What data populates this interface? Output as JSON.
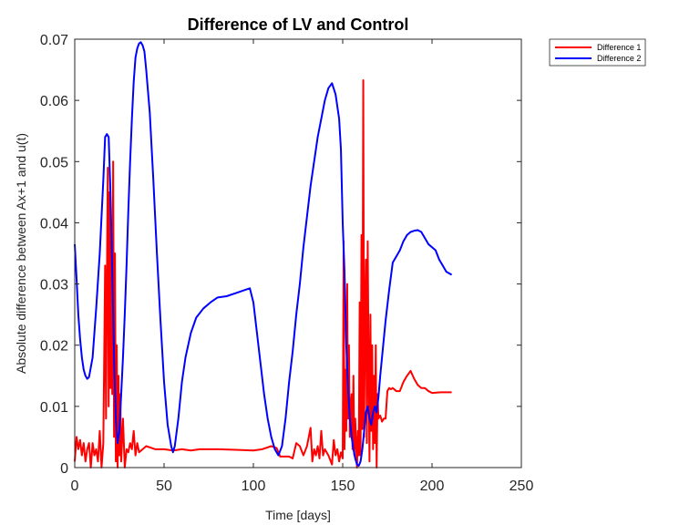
{
  "chart_data": {
    "type": "line",
    "title": "Difference of LV and Control",
    "xlabel": "Time [days]",
    "ylabel": "Absolute difference between Ax+1 and u(t)",
    "xlim": [
      0,
      250
    ],
    "ylim": [
      0,
      0.07
    ],
    "xticks": [
      0,
      50,
      100,
      150,
      200,
      250
    ],
    "xtick_labels": [
      "0",
      "50",
      "100",
      "150",
      "200",
      "250"
    ],
    "yticks": [
      0,
      0.01,
      0.02,
      0.03,
      0.04,
      0.05,
      0.06,
      0.07
    ],
    "ytick_labels": [
      "0",
      "0.01",
      "0.02",
      "0.03",
      "0.04",
      "0.05",
      "0.06",
      "0.07"
    ],
    "grid": false,
    "legend_position": "top-right (outside axes)",
    "series": [
      {
        "name": "Difference 1",
        "color": "#ff0000",
        "points": [
          [
            0,
            0.001
          ],
          [
            1,
            0.005
          ],
          [
            2,
            0.003
          ],
          [
            3,
            0.0045
          ],
          [
            4,
            0.002
          ],
          [
            5,
            0.004
          ],
          [
            6,
            0.001
          ],
          [
            7,
            0.003
          ],
          [
            8,
            0.004
          ],
          [
            9,
            0.0
          ],
          [
            10,
            0.004
          ],
          [
            11,
            0.002
          ],
          [
            12,
            0.003
          ],
          [
            13,
            0.001
          ],
          [
            14,
            0.006
          ],
          [
            15,
            0.0
          ],
          [
            16,
            0.004
          ],
          [
            17,
            0.033
          ],
          [
            17.5,
            0.008
          ],
          [
            18,
            0.03
          ],
          [
            18.5,
            0.049
          ],
          [
            19,
            0.01
          ],
          [
            19.5,
            0.045
          ],
          [
            20,
            0.013
          ],
          [
            20.5,
            0.04
          ],
          [
            21,
            0.012
          ],
          [
            21.5,
            0.05
          ],
          [
            22,
            0.005
          ],
          [
            22.5,
            0.035
          ],
          [
            23,
            0.001
          ],
          [
            23.5,
            0.02
          ],
          [
            24,
            0.0
          ],
          [
            24.5,
            0.015
          ],
          [
            25,
            0.002
          ],
          [
            25.5,
            0.012
          ],
          [
            26,
            0.001
          ],
          [
            27,
            0.008
          ],
          [
            28,
            0.0
          ],
          [
            29,
            0.003
          ],
          [
            30,
            0.0025
          ],
          [
            31,
            0.004
          ],
          [
            32,
            0.003
          ],
          [
            33,
            0.006
          ],
          [
            34,
            0.002
          ],
          [
            35,
            0.004
          ],
          [
            36,
            0.0025
          ],
          [
            38,
            0.003
          ],
          [
            40,
            0.0035
          ],
          [
            45,
            0.003
          ],
          [
            50,
            0.003
          ],
          [
            55,
            0.0028
          ],
          [
            60,
            0.003
          ],
          [
            65,
            0.0028
          ],
          [
            70,
            0.003
          ],
          [
            80,
            0.003
          ],
          [
            90,
            0.0029
          ],
          [
            100,
            0.0028
          ],
          [
            105,
            0.003
          ],
          [
            110,
            0.0035
          ],
          [
            113,
            0.0032
          ],
          [
            115,
            0.0018
          ],
          [
            120,
            0.0018
          ],
          [
            122,
            0.0015
          ],
          [
            124,
            0.004
          ],
          [
            126,
            0.0035
          ],
          [
            128,
            0.002
          ],
          [
            130,
            0.0035
          ],
          [
            132,
            0.0065
          ],
          [
            133,
            0.001
          ],
          [
            134,
            0.003
          ],
          [
            135,
            0.002
          ],
          [
            136,
            0.0035
          ],
          [
            137,
            0.0015
          ],
          [
            138,
            0.006
          ],
          [
            139,
            0.002
          ],
          [
            140,
            0.003
          ],
          [
            142,
            0.002
          ],
          [
            144,
            0.0005
          ],
          [
            145,
            0.0045
          ],
          [
            146,
            0.002
          ],
          [
            147,
            0.003
          ],
          [
            148,
            0.001
          ],
          [
            149,
            0.0025
          ],
          [
            150,
            0.0015
          ],
          [
            150.5,
            0.037
          ],
          [
            151,
            0.003
          ],
          [
            151.5,
            0.016
          ],
          [
            152,
            0.006
          ],
          [
            152.5,
            0.03
          ],
          [
            153,
            0.008
          ],
          [
            153.5,
            0.02
          ],
          [
            154,
            0.005
          ],
          [
            154.5,
            0.01
          ],
          [
            155,
            0.012
          ],
          [
            155.5,
            0.003
          ],
          [
            156,
            0.015
          ],
          [
            156.5,
            0.002
          ],
          [
            157,
            0.008
          ],
          [
            158,
            0.0
          ],
          [
            158.5,
            0.006
          ],
          [
            159,
            0.002
          ],
          [
            159.5,
            0.027
          ],
          [
            160,
            0.002
          ],
          [
            160.5,
            0.038
          ],
          [
            161,
            0.0063
          ],
          [
            161.5,
            0.0633
          ],
          [
            162,
            0.005
          ],
          [
            162.5,
            0.025
          ],
          [
            163,
            0.034
          ],
          [
            163.5,
            0.004
          ],
          [
            164,
            0.037
          ],
          [
            164.5,
            0.016
          ],
          [
            165,
            0.001
          ],
          [
            165.5,
            0.025
          ],
          [
            166,
            0.006
          ],
          [
            166.5,
            0.02
          ],
          [
            167,
            0.003
          ],
          [
            167.5,
            0.015
          ],
          [
            168,
            0.004
          ],
          [
            168.5,
            0.02
          ],
          [
            169,
            0.0
          ],
          [
            169.5,
            0.012
          ],
          [
            170,
            0.008
          ],
          [
            171,
            0.0085
          ],
          [
            172,
            0.0075
          ],
          [
            173,
            0.008
          ],
          [
            174,
            0.008
          ],
          [
            175,
            0.0125
          ],
          [
            176,
            0.013
          ],
          [
            177,
            0.0128
          ],
          [
            178,
            0.013
          ],
          [
            180,
            0.0125
          ],
          [
            182,
            0.0125
          ],
          [
            184,
            0.014
          ],
          [
            186,
            0.015
          ],
          [
            188,
            0.0158
          ],
          [
            190,
            0.0145
          ],
          [
            192,
            0.0135
          ],
          [
            194,
            0.013
          ],
          [
            196,
            0.013
          ],
          [
            198,
            0.0125
          ],
          [
            200,
            0.0122
          ],
          [
            205,
            0.0123
          ],
          [
            211,
            0.0123
          ]
        ]
      },
      {
        "name": "Difference 2",
        "color": "#0000ff",
        "points": [
          [
            0,
            0.0365
          ],
          [
            1,
            0.031
          ],
          [
            2,
            0.025
          ],
          [
            3,
            0.021
          ],
          [
            4,
            0.018
          ],
          [
            5,
            0.016
          ],
          [
            6,
            0.015
          ],
          [
            7,
            0.0145
          ],
          [
            8,
            0.0148
          ],
          [
            10,
            0.018
          ],
          [
            12,
            0.026
          ],
          [
            14,
            0.035
          ],
          [
            16,
            0.047
          ],
          [
            17,
            0.054
          ],
          [
            18,
            0.0545
          ],
          [
            19,
            0.054
          ],
          [
            20,
            0.045
          ],
          [
            21,
            0.032
          ],
          [
            22,
            0.018
          ],
          [
            23,
            0.008
          ],
          [
            24,
            0.004
          ],
          [
            25,
            0.006
          ],
          [
            26,
            0.012
          ],
          [
            27,
            0.018
          ],
          [
            28,
            0.025
          ],
          [
            29,
            0.033
          ],
          [
            30,
            0.042
          ],
          [
            31,
            0.05
          ],
          [
            32,
            0.057
          ],
          [
            33,
            0.063
          ],
          [
            34,
            0.067
          ],
          [
            35,
            0.0685
          ],
          [
            36,
            0.0693
          ],
          [
            37,
            0.0695
          ],
          [
            38,
            0.069
          ],
          [
            39,
            0.068
          ],
          [
            40,
            0.065
          ],
          [
            42,
            0.058
          ],
          [
            44,
            0.047
          ],
          [
            46,
            0.035
          ],
          [
            48,
            0.024
          ],
          [
            50,
            0.014
          ],
          [
            52,
            0.007
          ],
          [
            54,
            0.0035
          ],
          [
            55,
            0.0025
          ],
          [
            56,
            0.0035
          ],
          [
            58,
            0.008
          ],
          [
            60,
            0.014
          ],
          [
            62,
            0.018
          ],
          [
            65,
            0.022
          ],
          [
            68,
            0.0245
          ],
          [
            72,
            0.026
          ],
          [
            76,
            0.027
          ],
          [
            80,
            0.0278
          ],
          [
            85,
            0.028
          ],
          [
            90,
            0.0285
          ],
          [
            95,
            0.029
          ],
          [
            98,
            0.0293
          ],
          [
            100,
            0.027
          ],
          [
            102,
            0.022
          ],
          [
            104,
            0.017
          ],
          [
            106,
            0.012
          ],
          [
            108,
            0.008
          ],
          [
            110,
            0.005
          ],
          [
            112,
            0.003
          ],
          [
            114,
            0.002
          ],
          [
            116,
            0.0035
          ],
          [
            118,
            0.008
          ],
          [
            120,
            0.014
          ],
          [
            122,
            0.019
          ],
          [
            124,
            0.025
          ],
          [
            126,
            0.03
          ],
          [
            128,
            0.036
          ],
          [
            130,
            0.041
          ],
          [
            132,
            0.046
          ],
          [
            134,
            0.05
          ],
          [
            136,
            0.054
          ],
          [
            138,
            0.057
          ],
          [
            140,
            0.06
          ],
          [
            142,
            0.062
          ],
          [
            144,
            0.0628
          ],
          [
            146,
            0.061
          ],
          [
            148,
            0.057
          ],
          [
            149,
            0.052
          ],
          [
            150,
            0.04
          ],
          [
            151,
            0.032
          ],
          [
            152,
            0.02
          ],
          [
            153,
            0.013
          ],
          [
            154,
            0.008
          ],
          [
            155,
            0.005
          ],
          [
            156,
            0.003
          ],
          [
            157,
            0.0015
          ],
          [
            158,
            0.0005
          ],
          [
            159,
            0.0003
          ],
          [
            160,
            0.001
          ],
          [
            161,
            0.003
          ],
          [
            162,
            0.006
          ],
          [
            163,
            0.009
          ],
          [
            164,
            0.01
          ],
          [
            165,
            0.008
          ],
          [
            166,
            0.007
          ],
          [
            167,
            0.009
          ],
          [
            168,
            0.01
          ],
          [
            169,
            0.009
          ],
          [
            170,
            0.0115
          ],
          [
            171,
            0.015
          ],
          [
            172,
            0.018
          ],
          [
            174,
            0.024
          ],
          [
            176,
            0.029
          ],
          [
            178,
            0.0335
          ],
          [
            180,
            0.0345
          ],
          [
            182,
            0.0355
          ],
          [
            184,
            0.037
          ],
          [
            186,
            0.038
          ],
          [
            188,
            0.0385
          ],
          [
            190,
            0.0387
          ],
          [
            192,
            0.0388
          ],
          [
            194,
            0.0385
          ],
          [
            196,
            0.0375
          ],
          [
            198,
            0.0365
          ],
          [
            200,
            0.036
          ],
          [
            202,
            0.0355
          ],
          [
            204,
            0.034
          ],
          [
            206,
            0.033
          ],
          [
            208,
            0.032
          ],
          [
            211,
            0.0315
          ]
        ]
      }
    ]
  }
}
